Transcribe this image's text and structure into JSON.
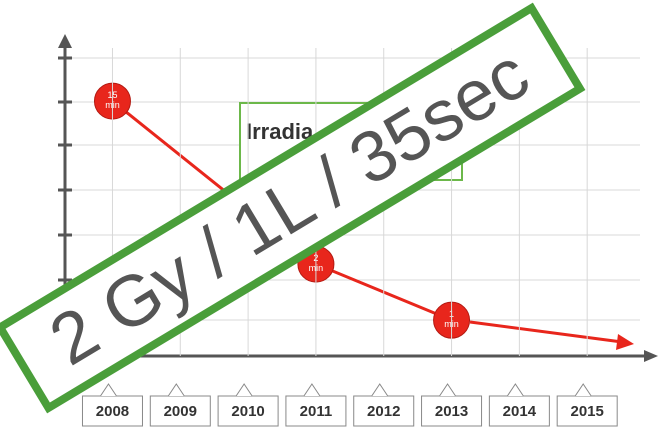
{
  "chart_data": {
    "type": "line",
    "box_label": "Irradia",
    "overlay": "2 Gy / 1L / 35sec",
    "x": [
      2008,
      2011,
      2013
    ],
    "values": [
      15,
      2,
      1
    ],
    "value_labels": [
      "15 min",
      "2 min",
      "1 min"
    ],
    "color": "#e8261c",
    "log_scale": true,
    "xlim": [
      2007.3,
      2016
    ],
    "xticks": [
      2008,
      2009,
      2010,
      2011,
      2012,
      2013,
      2014,
      2015
    ],
    "ylim": [
      0.65,
      30
    ]
  }
}
